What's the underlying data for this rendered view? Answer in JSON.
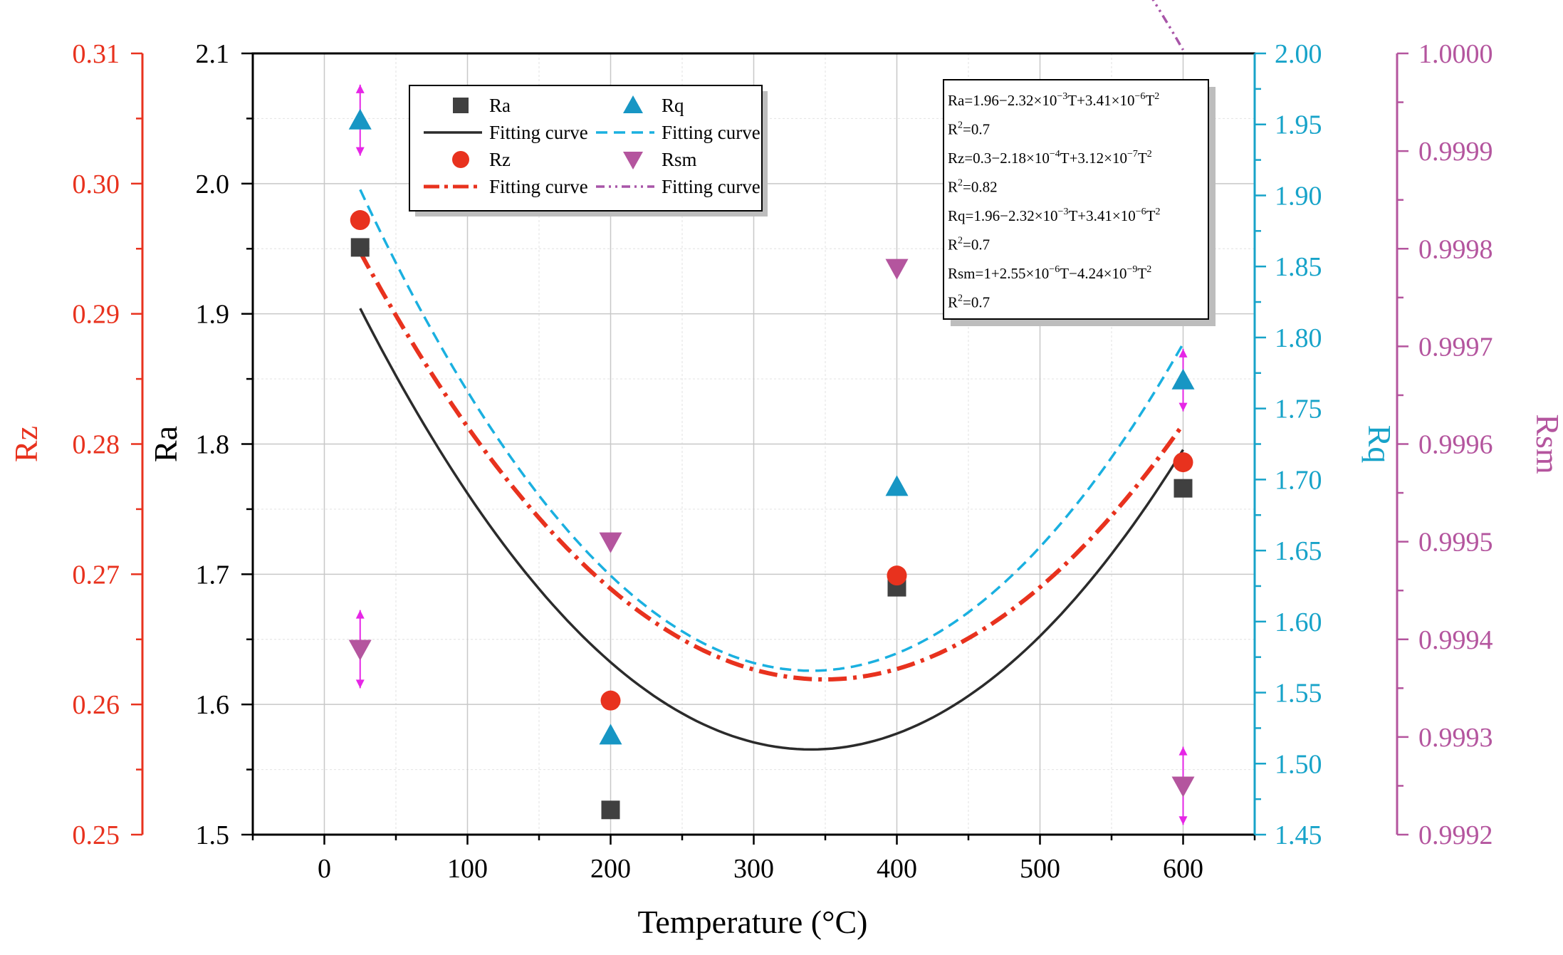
{
  "chart_data": {
    "type": "scatter",
    "xlabel": "Temperature (°C)",
    "xlim": [
      -50,
      650
    ],
    "xticks": [
      0,
      100,
      200,
      300,
      400,
      500,
      600
    ],
    "axes": {
      "ra": {
        "label": "Ra",
        "lim": [
          1.5,
          2.1
        ],
        "ticks": [
          "1.5",
          "1.6",
          "1.7",
          "1.8",
          "1.9",
          "2.0",
          "2.1"
        ],
        "color": "#000000"
      },
      "rz": {
        "label": "Rz",
        "lim": [
          0.25,
          0.31
        ],
        "ticks": [
          "0.25",
          "0.26",
          "0.27",
          "0.28",
          "0.29",
          "0.30",
          "0.31"
        ],
        "color": "#e8321e"
      },
      "rq": {
        "label": "Rq",
        "lim": [
          1.45,
          2.0
        ],
        "ticks": [
          "1.45",
          "1.50",
          "1.55",
          "1.60",
          "1.65",
          "1.70",
          "1.75",
          "1.80",
          "1.85",
          "1.90",
          "1.95",
          "2.00"
        ],
        "color": "#17a3c9"
      },
      "rsm": {
        "label": "Rsm",
        "lim": [
          0.9992,
          1.0
        ],
        "ticks": [
          "0.9992",
          "0.9993",
          "0.9994",
          "0.9995",
          "0.9996",
          "0.9997",
          "0.9998",
          "0.9999",
          "1.0000"
        ],
        "color": "#b4559e"
      }
    },
    "series": [
      {
        "name": "Ra",
        "axis": "ra",
        "marker": "square",
        "color": "#404040",
        "x": [
          25,
          200,
          400,
          600
        ],
        "y": [
          1.951,
          1.519,
          1.69,
          1.766
        ]
      },
      {
        "name": "Rz",
        "axis": "rz",
        "marker": "circle",
        "color": "#e8321e",
        "x": [
          25,
          200,
          400,
          600
        ],
        "y": [
          0.2972,
          0.2603,
          0.2699,
          0.2786
        ]
      },
      {
        "name": "Rq",
        "axis": "rq",
        "marker": "triangle-up",
        "color": "#1796c4",
        "x": [
          25,
          200,
          400,
          600
        ],
        "y": [
          1.953,
          1.52,
          1.695,
          1.77
        ]
      },
      {
        "name": "Rsm",
        "axis": "rsm",
        "marker": "triangle-down",
        "color": "#b4559e",
        "x": [
          25,
          200,
          400,
          600
        ],
        "y": [
          0.99939,
          0.9995,
          0.99978,
          0.99925
        ]
      }
    ],
    "error_bars": {
      "Rq": [
        [
          25,
          0.025
        ],
        [
          600,
          0.022
        ]
      ],
      "Rsm": [
        [
          25,
          4e-05
        ],
        [
          600,
          4e-05
        ]
      ]
    },
    "fits": [
      {
        "name": "Fitting curve",
        "series": "Ra",
        "axis": "ra",
        "color": "#2b2b2b",
        "dash": "",
        "coef": [
          1.96,
          -0.00232,
          3.41e-06
        ],
        "xrange": [
          25,
          600
        ]
      },
      {
        "name": "Fitting curve",
        "series": "Rz",
        "axis": "rz",
        "color": "#e8321e",
        "dash": "26 9 5 9",
        "coef": [
          0.3,
          -0.000218,
          3.12e-07
        ],
        "xrange": [
          25,
          600
        ]
      },
      {
        "name": "Fitting curve",
        "series": "Rq",
        "axis": "rq",
        "color": "#1ab0e0",
        "dash": "16 9",
        "coef": [
          1.96,
          -0.00232,
          3.41e-06
        ],
        "xrange": [
          25,
          600
        ]
      },
      {
        "name": "Fitting curve",
        "series": "Rsm",
        "axis": "rsm",
        "color": "#a855a8",
        "dash": "12 6 3 6 3 6",
        "coef": [
          1.0,
          2.55e-06,
          -4.24e-09
        ],
        "xrange": [
          25,
          600
        ]
      }
    ],
    "legend": {
      "position": "top-left",
      "entries": [
        {
          "label": "Ra",
          "kind": "marker",
          "ref": "Ra"
        },
        {
          "label": "Rq",
          "kind": "marker",
          "ref": "Rq"
        },
        {
          "label": "Fitting curve",
          "kind": "line",
          "ref": "Ra"
        },
        {
          "label": "Fitting curve",
          "kind": "line",
          "ref": "Rq"
        },
        {
          "label": "Rz",
          "kind": "marker",
          "ref": "Rz"
        },
        {
          "label": "Rsm",
          "kind": "marker",
          "ref": "Rsm"
        },
        {
          "label": "Fitting curve",
          "kind": "line",
          "ref": "Rz"
        },
        {
          "label": "Fitting curve",
          "kind": "line",
          "ref": "Rsm"
        }
      ]
    },
    "equations": [
      {
        "base": "Ra=1.96−2.32×10",
        "e1": "−3",
        "mid": "T+3.41×10",
        "e2": "−6",
        "tail": "T",
        "e3": "2"
      },
      {
        "base": "R",
        "e1": "2",
        "mid": "=0.7",
        "e2": "",
        "tail": "",
        "e3": ""
      },
      {
        "base": "Rz=0.3−2.18×10",
        "e1": "−4",
        "mid": "T+3.12×10",
        "e2": "−7",
        "tail": "T",
        "e3": "2"
      },
      {
        "base": "R",
        "e1": "2",
        "mid": "=0.82",
        "e2": "",
        "tail": "",
        "e3": ""
      },
      {
        "base": "Rq=1.96−2.32×10",
        "e1": "−3",
        "mid": "T+3.41×10",
        "e2": "−6",
        "tail": "T",
        "e3": "2"
      },
      {
        "base": "R",
        "e1": "2",
        "mid": "=0.7",
        "e2": "",
        "tail": "",
        "e3": ""
      },
      {
        "base": "Rsm=1+2.55×10",
        "e1": "−6",
        "mid": "T−4.24×10",
        "e2": "−9",
        "tail": "T",
        "e3": "2"
      },
      {
        "base": "R",
        "e1": "2",
        "mid": "=0.7",
        "e2": "",
        "tail": "",
        "e3": ""
      }
    ],
    "grid": true
  }
}
